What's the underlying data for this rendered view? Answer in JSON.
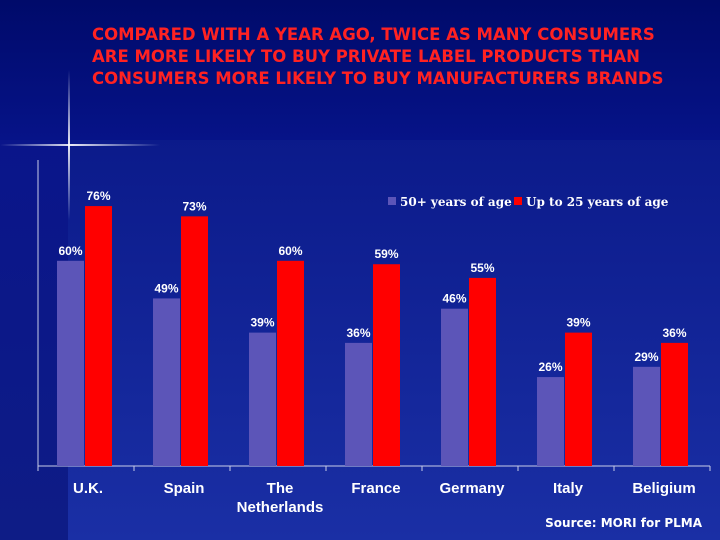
{
  "title": "COMPARED WITH A YEAR AGO, TWICE AS MANY CONSUMERS ARE MORE LIKELY TO BUY PRIVATE LABEL PRODUCTS THAN CONSUMERS MORE LIKELY TO BUY MANUFACTURERS BRANDS",
  "source": "Source: MORI for PLMA",
  "colors": {
    "series_50": "#5c55b8",
    "series_25": "#ff0000",
    "title": "#ff2222",
    "label": "#ffffff"
  },
  "chart_data": {
    "type": "bar",
    "categories": [
      [
        "U.K."
      ],
      [
        "Spain"
      ],
      [
        "The",
        "Netherlands"
      ],
      [
        "France"
      ],
      [
        "Germany"
      ],
      [
        "Italy"
      ],
      [
        "Beligium"
      ]
    ],
    "series": [
      {
        "name": "50+ years of age",
        "values": [
          60,
          49,
          39,
          36,
          46,
          26,
          29
        ],
        "labels": [
          "60%",
          "49%",
          "39%",
          "36%",
          "46%",
          "26%",
          "29%"
        ]
      },
      {
        "name": "Up to 25 years of age",
        "values": [
          76,
          73,
          60,
          59,
          55,
          39,
          36
        ],
        "labels": [
          "76%",
          "73%",
          "60%",
          "59%",
          "55%",
          "39%",
          "36%"
        ]
      }
    ],
    "ylim": [
      0,
      80
    ],
    "legend": "top-right",
    "grid": false
  }
}
